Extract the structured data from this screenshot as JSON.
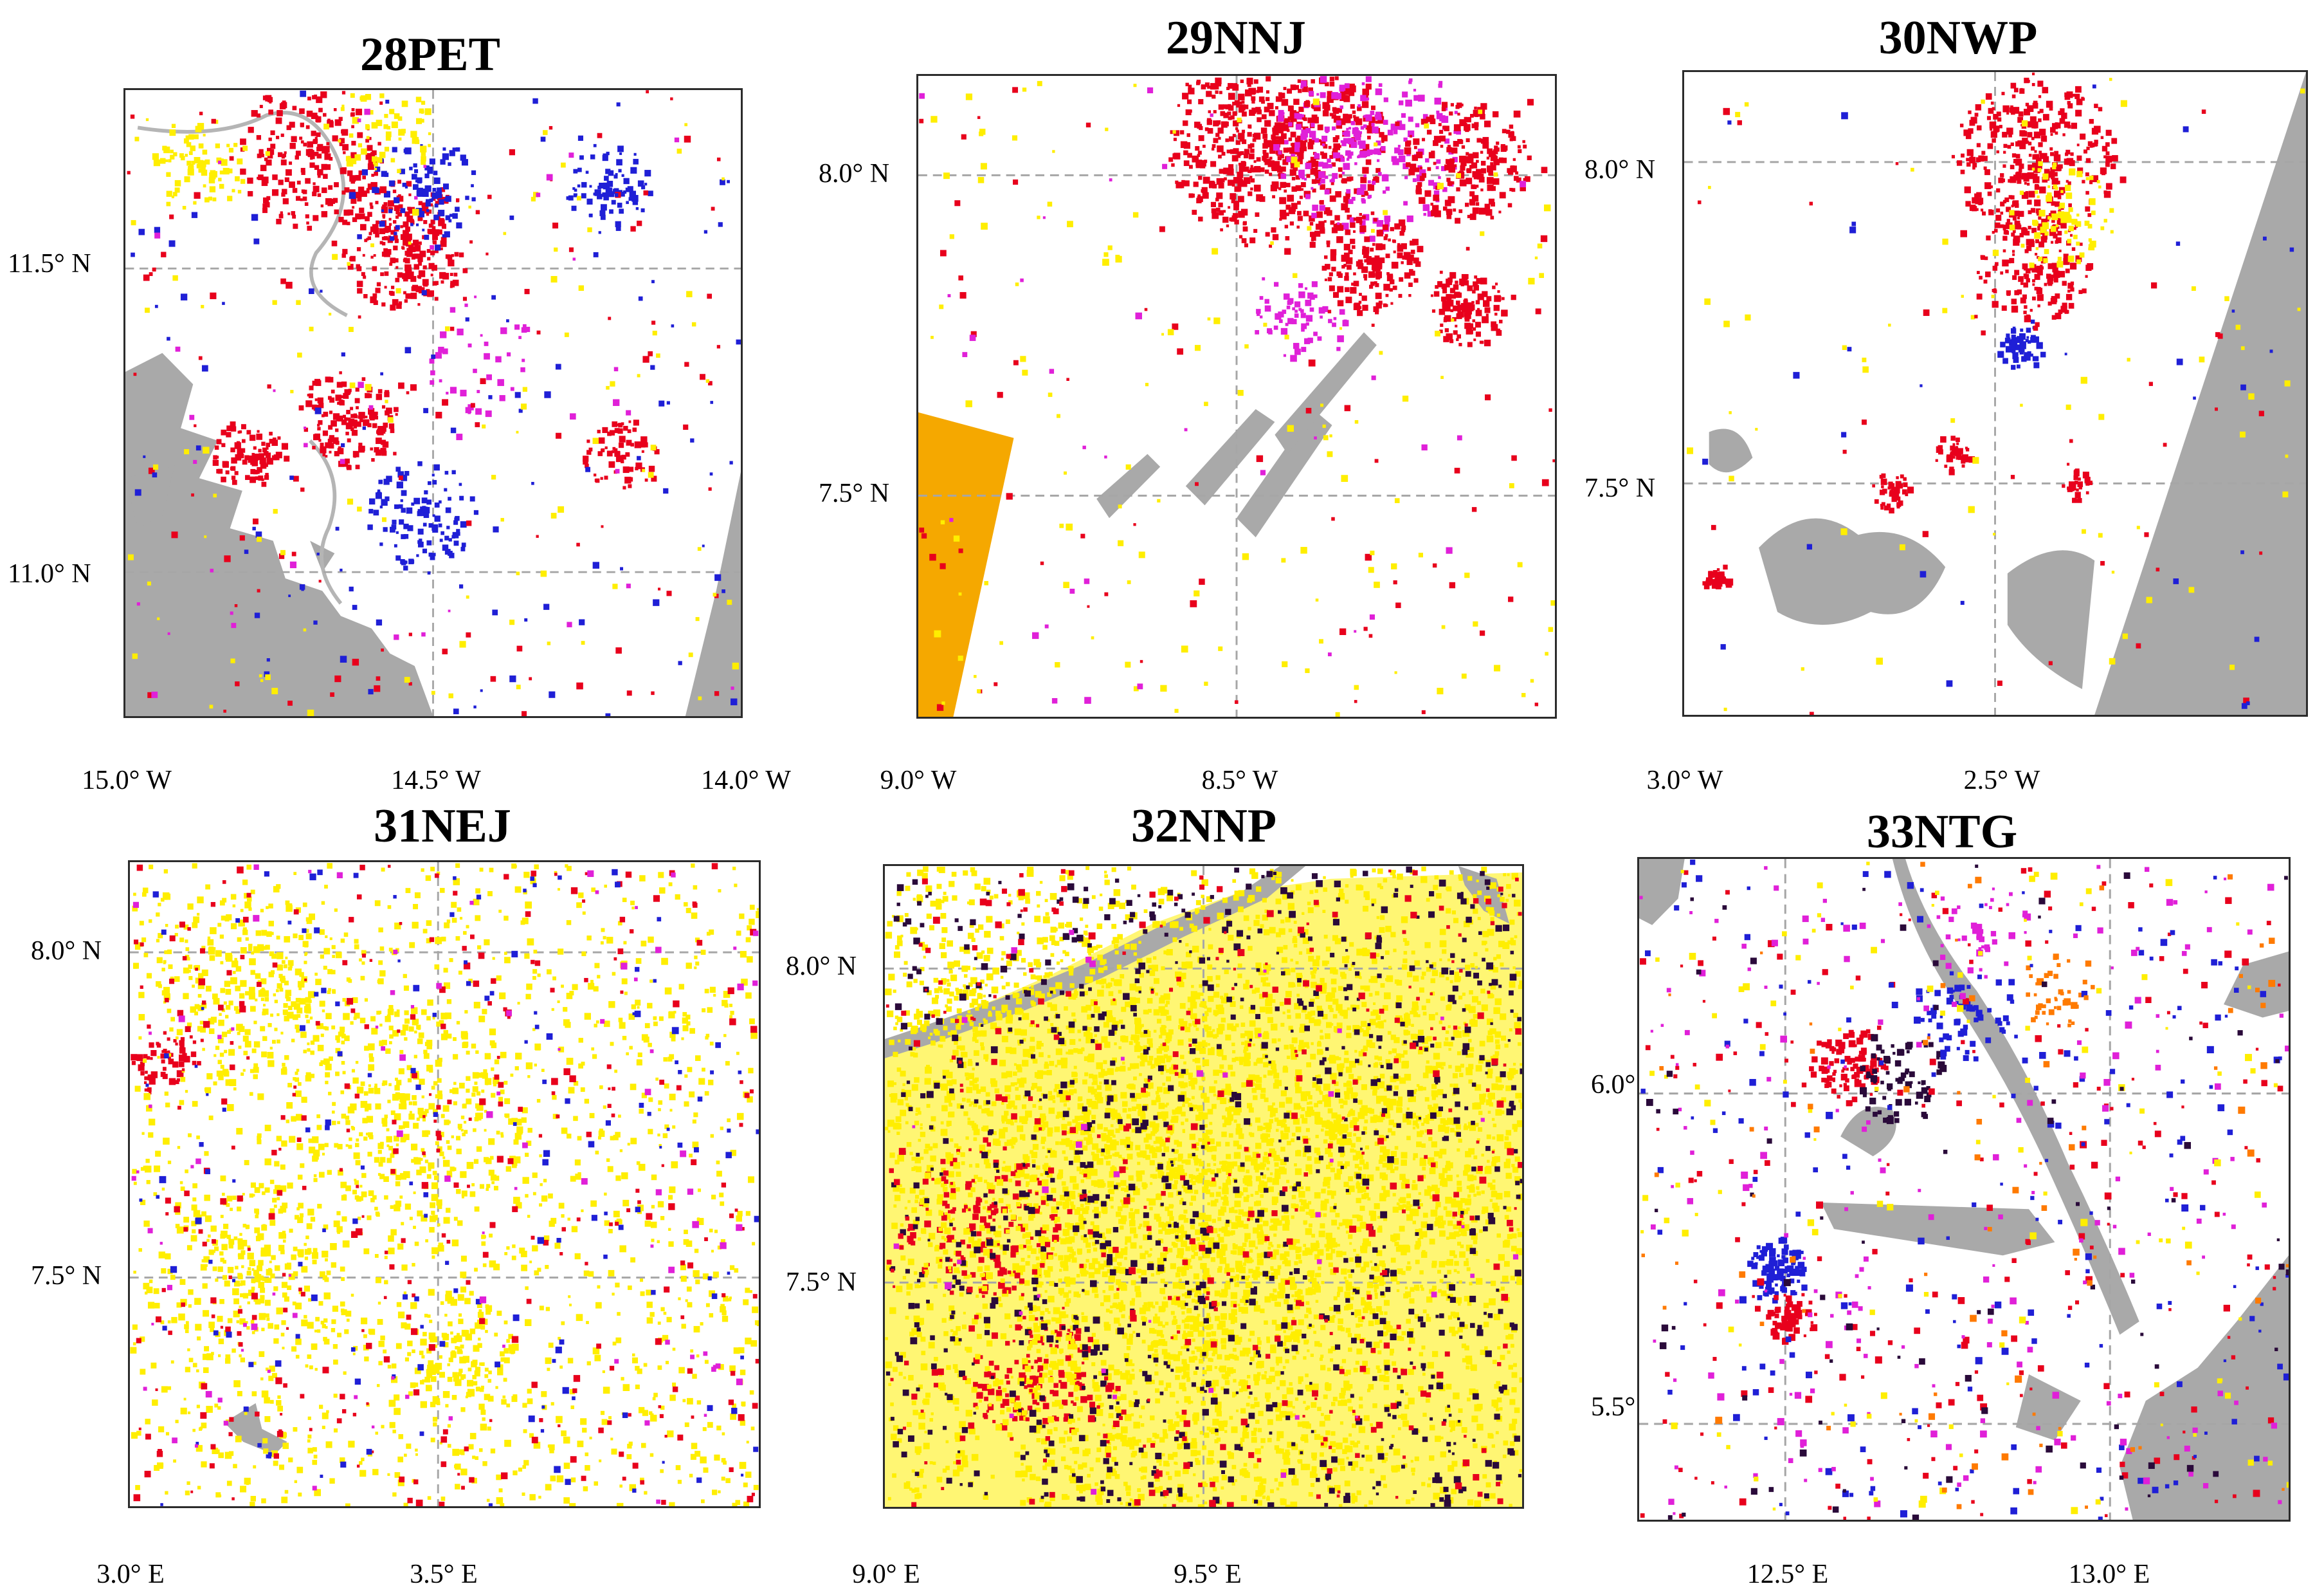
{
  "map_data": {
    "type": "map-panels",
    "colors": {
      "frame": "#2b2b2b",
      "gridline": "#a6a6a6",
      "water": "#a9a9a9",
      "no_data": "#a9a9a9",
      "red": "#e8001c",
      "yellow": "#ffee00",
      "blue": "#1f1fd6",
      "magenta": "#e020d8",
      "orange": "#ff7a00",
      "dark": "#2a0a3a",
      "amber_strip": "#f5a800"
    },
    "panels": [
      {
        "id": "p1",
        "title": "28PET",
        "x_ticks": [
          "15.0° W",
          "14.5° W",
          "14.0° W"
        ],
        "y_ticks": [
          "11.5° N",
          "11.0° N"
        ],
        "dominant": [
          "red",
          "blue",
          "yellow",
          "magenta"
        ],
        "features": [
          "coastline-water-left",
          "no-data-corner-right",
          "river-channels"
        ]
      },
      {
        "id": "p2",
        "title": "29NNJ",
        "x_ticks": [
          "9.0° W",
          "8.5° W"
        ],
        "y_ticks": [
          "8.0° N",
          "7.5° N"
        ],
        "dominant": [
          "red",
          "magenta",
          "yellow"
        ],
        "features": [
          "amber-strip-left",
          "grey-ridges"
        ]
      },
      {
        "id": "p3",
        "title": "30NWP",
        "x_ticks": [
          "3.0° W",
          "2.5° W"
        ],
        "y_ticks": [
          "8.0° N",
          "7.5° N"
        ],
        "dominant": [
          "red",
          "yellow",
          "blue"
        ],
        "features": [
          "no-data-right-wedge",
          "water-lower"
        ]
      },
      {
        "id": "p4",
        "title": "31NEJ",
        "x_ticks": [
          "3.0° E",
          "3.5° E"
        ],
        "y_ticks": [
          "8.0° N",
          "7.5° N"
        ],
        "dominant": [
          "yellow",
          "red",
          "blue",
          "magenta"
        ],
        "features": [
          "small-water-lower-left"
        ]
      },
      {
        "id": "p5",
        "title": "32NNP",
        "x_ticks": [
          "9.0° E",
          "9.5° E"
        ],
        "y_ticks": [
          "8.0° N",
          "7.5° N"
        ],
        "dominant": [
          "yellow",
          "red",
          "dark"
        ],
        "features": [
          "river-top-left"
        ]
      },
      {
        "id": "p6",
        "title": "33NTG",
        "x_ticks": [
          "12.5° E",
          "13.0° E"
        ],
        "y_ticks": [
          "6.0° N",
          "5.5° N"
        ],
        "dominant": [
          "blue",
          "red",
          "magenta",
          "dark",
          "orange",
          "yellow"
        ],
        "features": [
          "no-data-right",
          "water-corner-left",
          "river-diagonal"
        ]
      }
    ]
  }
}
